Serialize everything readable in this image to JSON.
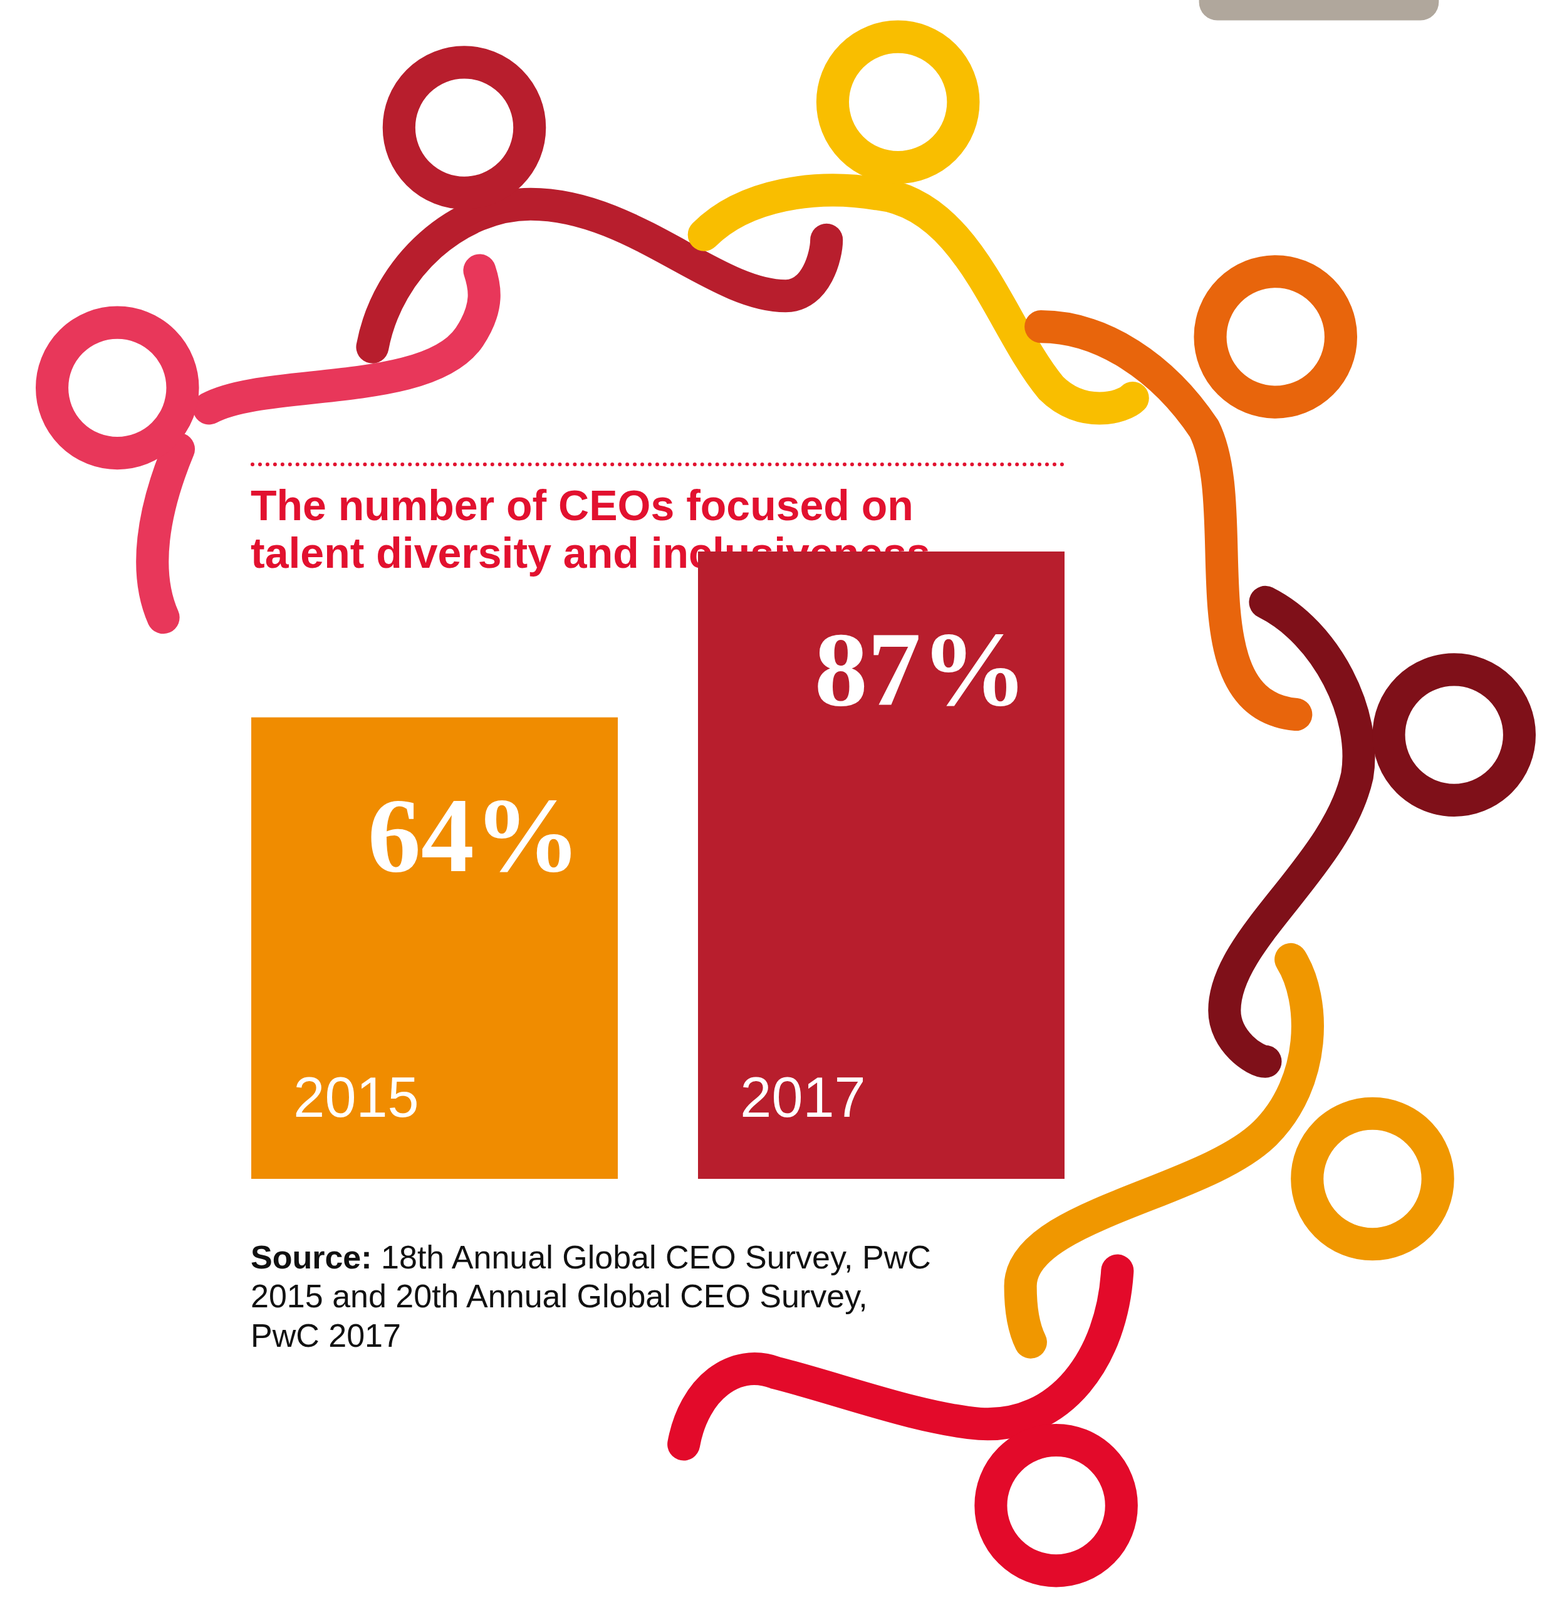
{
  "chart_data": {
    "type": "bar",
    "title": "The number of CEOs focused on talent diversity and inclusiveness",
    "categories": [
      "2015",
      "2017"
    ],
    "values": [
      64,
      87
    ],
    "value_labels": [
      "64%",
      "87%"
    ],
    "colors": [
      "#f08c00",
      "#b81e2d"
    ],
    "ylim": [
      0,
      87
    ],
    "yticks": [],
    "data_labels": true,
    "tick_labels": false,
    "source": "Source: 18th Annual Global CEO Survey, PwC 2015 and 20th Annual Global CEO Survey, PwC 2017"
  }
}
